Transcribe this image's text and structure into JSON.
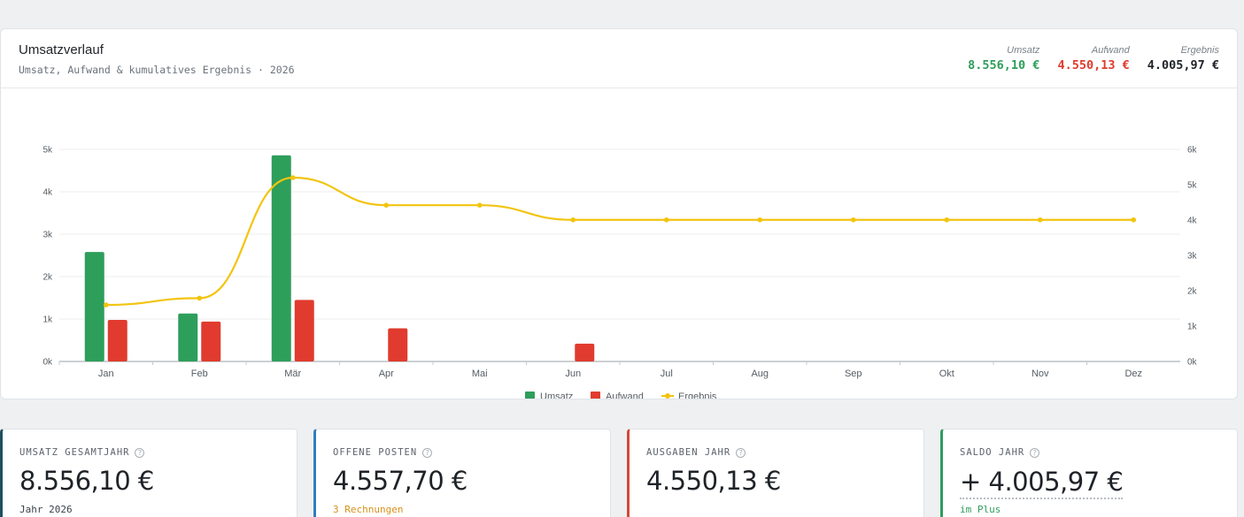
{
  "header": {
    "title": "Umsatzverlauf",
    "subtitle": "Umsatz, Aufwand & kumulatives Ergebnis · 2026",
    "totals": [
      {
        "label": "Umsatz",
        "value": "8.556,10 €",
        "color": "#2e9e5b"
      },
      {
        "label": "Aufwand",
        "value": "4.550,13 €",
        "color": "#e03b2e"
      },
      {
        "label": "Ergebnis",
        "value": "4.005,97 €",
        "color": "#1f2328"
      }
    ]
  },
  "chart_data": {
    "type": "bar",
    "categories": [
      "Jan",
      "Feb",
      "Mär",
      "Apr",
      "Mai",
      "Jun",
      "Jul",
      "Aug",
      "Sep",
      "Okt",
      "Nov",
      "Dez"
    ],
    "left_axis": {
      "ticks": [
        "0k",
        "1k",
        "2k",
        "3k",
        "4k",
        "5k"
      ],
      "range": [
        0,
        5000
      ]
    },
    "right_axis": {
      "ticks": [
        "0k",
        "1k",
        "2k",
        "3k",
        "4k",
        "5k",
        "6k"
      ],
      "range": [
        0,
        6000
      ]
    },
    "grid": true,
    "legend_position": "bottom",
    "series": [
      {
        "name": "Umsatz",
        "kind": "bar",
        "axis": "left",
        "color": "#2e9e5b",
        "values": [
          2580,
          1130,
          4860,
          0,
          0,
          0,
          0,
          0,
          0,
          0,
          0,
          0
        ]
      },
      {
        "name": "Aufwand",
        "kind": "bar",
        "axis": "left",
        "color": "#e03b2e",
        "values": [
          980,
          940,
          1450,
          780,
          0,
          420,
          0,
          0,
          0,
          0,
          0,
          0
        ]
      },
      {
        "name": "Ergebnis",
        "kind": "line",
        "axis": "right",
        "color": "#f2c40f",
        "values": [
          1600,
          1790,
          5200,
          4420,
          4420,
          4006,
          4006,
          4006,
          4006,
          4006,
          4006,
          4006
        ]
      }
    ]
  },
  "kpis": [
    {
      "label": "UMSATZ GESAMTJAHR",
      "value": "8.556,10 €",
      "sub": "Jahr 2026",
      "accent": "#1f4e5f",
      "sub_color": "#3b4249"
    },
    {
      "label": "OFFENE POSTEN",
      "value": "4.557,70 €",
      "sub": "3 Rechnungen",
      "accent": "#2f7fc1",
      "sub_color": "#d9921a"
    },
    {
      "label": "AUSGABEN JAHR",
      "value": "4.550,13 €",
      "sub": "",
      "accent": "#d6473b",
      "sub_color": "#3b4249"
    },
    {
      "label": "SALDO JAHR",
      "value": "+ 4.005,97 €",
      "sub": "im Plus",
      "accent": "#2e9e5b",
      "sub_color": "#2e9e5b"
    }
  ]
}
